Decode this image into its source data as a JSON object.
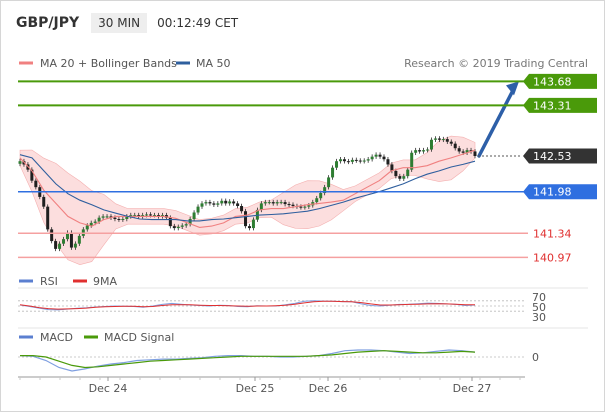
{
  "header": {
    "symbol": "GBP/JPY",
    "timeframe": "30 MIN",
    "time": "00:12:49 CET"
  },
  "legend": {
    "ma_bb": {
      "label": "MA 20 + Bollinger Bands",
      "color": "#f08080"
    },
    "ma50": {
      "label": "MA 50",
      "color": "#2f5f9e"
    },
    "copyright": "Research © 2019 Trading Central"
  },
  "levels": [
    {
      "value": 143.68,
      "label": "143.68",
      "kind": "resistance",
      "color": "#4a9a0a"
    },
    {
      "value": 143.31,
      "label": "143.31",
      "kind": "resistance",
      "color": "#4a9a0a"
    },
    {
      "value": 142.53,
      "label": "142.53",
      "kind": "last",
      "color": "#333333"
    },
    {
      "value": 141.98,
      "label": "141.98",
      "kind": "pivot",
      "color": "#2f6fe0"
    },
    {
      "value": 141.34,
      "label": "141.34",
      "kind": "support",
      "color": "#e03030"
    },
    {
      "value": 140.97,
      "label": "140.97",
      "kind": "support",
      "color": "#e03030"
    }
  ],
  "rsi_panel": {
    "legend": [
      {
        "label": "RSI",
        "color": "#5b7fd0"
      },
      {
        "label": "9MA",
        "color": "#e03030"
      }
    ],
    "ticks": [
      "70",
      "50",
      "30"
    ]
  },
  "macd_panel": {
    "legend": [
      {
        "label": "MACD",
        "color": "#5b7fd0"
      },
      {
        "label": "MACD Signal",
        "color": "#4a9a0a"
      }
    ],
    "ticks": [
      "0"
    ]
  },
  "xaxis": {
    "ticks": [
      "Dec 24",
      "Dec 25",
      "Dec 26",
      "Dec 27"
    ]
  },
  "chart_data": [
    {
      "type": "candlestick",
      "title": "GBP/JPY",
      "timeframe": "30 MIN",
      "ylim": [
        140.8,
        143.9
      ],
      "close": [
        142.45,
        142.4,
        142.32,
        142.15,
        142.05,
        141.9,
        141.75,
        141.4,
        141.22,
        141.1,
        141.18,
        141.25,
        141.35,
        141.12,
        141.18,
        141.3,
        141.4,
        141.46,
        141.5,
        141.52,
        141.58,
        141.6,
        141.6,
        141.58,
        141.56,
        141.55,
        141.56,
        141.6,
        141.62,
        141.62,
        141.6,
        141.62,
        141.63,
        141.62,
        141.62,
        141.6,
        141.62,
        141.58,
        141.45,
        141.42,
        141.44,
        141.46,
        141.48,
        141.56,
        141.66,
        141.75,
        141.8,
        141.82,
        141.8,
        141.78,
        141.8,
        141.84,
        141.8,
        141.83,
        141.8,
        141.76,
        141.68,
        141.45,
        141.42,
        141.55,
        141.7,
        141.8,
        141.82,
        141.82,
        141.8,
        141.82,
        141.82,
        141.79,
        141.78,
        141.76,
        141.75,
        141.74,
        141.75,
        141.77,
        141.82,
        141.88,
        141.96,
        142.05,
        142.2,
        142.35,
        142.45,
        142.48,
        142.45,
        142.44,
        142.47,
        142.46,
        142.45,
        142.46,
        142.48,
        142.52,
        142.55,
        142.52,
        142.48,
        142.4,
        142.3,
        142.22,
        142.18,
        142.22,
        142.32,
        142.58,
        142.62,
        142.6,
        142.62,
        142.63,
        142.78,
        142.8,
        142.78,
        142.79,
        142.75,
        142.72,
        142.65,
        142.6,
        142.58,
        142.62,
        142.6,
        142.53
      ],
      "ma20": [
        142.5,
        142.3,
        142.0,
        141.8,
        141.6,
        141.5,
        141.45,
        141.55,
        141.6,
        141.6,
        141.6,
        141.6,
        141.6,
        141.57,
        141.5,
        141.43,
        141.45,
        141.5,
        141.6,
        141.62,
        141.7,
        141.72,
        141.72,
        141.75,
        141.78,
        141.8,
        141.82,
        141.85,
        141.95,
        142.05,
        142.15,
        142.3,
        142.35,
        142.35,
        142.38,
        142.45,
        142.5,
        142.56,
        142.62
      ],
      "ma50": [
        142.55,
        142.5,
        142.3,
        142.1,
        141.95,
        141.85,
        141.78,
        141.7,
        141.65,
        141.6,
        141.56,
        141.55,
        141.55,
        141.55,
        141.53,
        141.53,
        141.55,
        141.56,
        141.58,
        141.6,
        141.62,
        141.63,
        141.64,
        141.66,
        141.68,
        141.72,
        141.77,
        141.82,
        141.88,
        141.93,
        141.98,
        142.04,
        142.1,
        142.18,
        142.25,
        142.3,
        142.36,
        142.4,
        142.45
      ]
    },
    {
      "type": "line",
      "title": "RSI",
      "series": [
        {
          "name": "RSI",
          "values": [
            54,
            48,
            42,
            36,
            35,
            38,
            41,
            43,
            46,
            48,
            50,
            49,
            48,
            45,
            50,
            56,
            60,
            57,
            54,
            52,
            50,
            53,
            52,
            48,
            47,
            51,
            50,
            50,
            55,
            60,
            68,
            70,
            69,
            68,
            67,
            66,
            58,
            52,
            50,
            53,
            56,
            57,
            59,
            61,
            60,
            58,
            56,
            52,
            54
          ]
        },
        {
          "name": "9MA",
          "values": [
            55,
            50,
            44,
            40,
            38,
            39,
            40,
            42,
            45,
            47,
            48,
            49,
            49,
            47,
            48,
            52,
            55,
            55,
            55,
            53,
            52,
            52,
            51,
            50,
            49,
            50,
            50,
            51,
            53,
            57,
            62,
            66,
            68,
            68,
            67,
            66,
            63,
            58,
            54,
            54,
            55,
            56,
            57,
            58,
            59,
            58,
            57,
            55,
            55
          ]
        }
      ]
    },
    {
      "type": "line",
      "title": "MACD",
      "series": [
        {
          "name": "MACD",
          "values": [
            0.02,
            0.01,
            -0.05,
            -0.15,
            -0.2,
            -0.17,
            -0.13,
            -0.1,
            -0.08,
            -0.05,
            -0.04,
            -0.03,
            -0.03,
            -0.02,
            -0.01,
            0.01,
            0.02,
            0.02,
            0.01,
            0.01,
            0.0,
            0.0,
            0.01,
            0.02,
            0.05,
            0.09,
            0.1,
            0.1,
            0.09,
            0.07,
            0.05,
            0.06,
            0.08,
            0.1,
            0.09,
            0.07
          ]
        },
        {
          "name": "MACD Signal",
          "values": [
            0.02,
            0.02,
            0.0,
            -0.06,
            -0.12,
            -0.15,
            -0.14,
            -0.12,
            -0.1,
            -0.08,
            -0.06,
            -0.05,
            -0.04,
            -0.03,
            -0.02,
            -0.01,
            0.0,
            0.01,
            0.01,
            0.01,
            0.01,
            0.01,
            0.01,
            0.02,
            0.03,
            0.05,
            0.07,
            0.08,
            0.09,
            0.08,
            0.07,
            0.06,
            0.06,
            0.07,
            0.08,
            0.07
          ]
        }
      ]
    }
  ]
}
